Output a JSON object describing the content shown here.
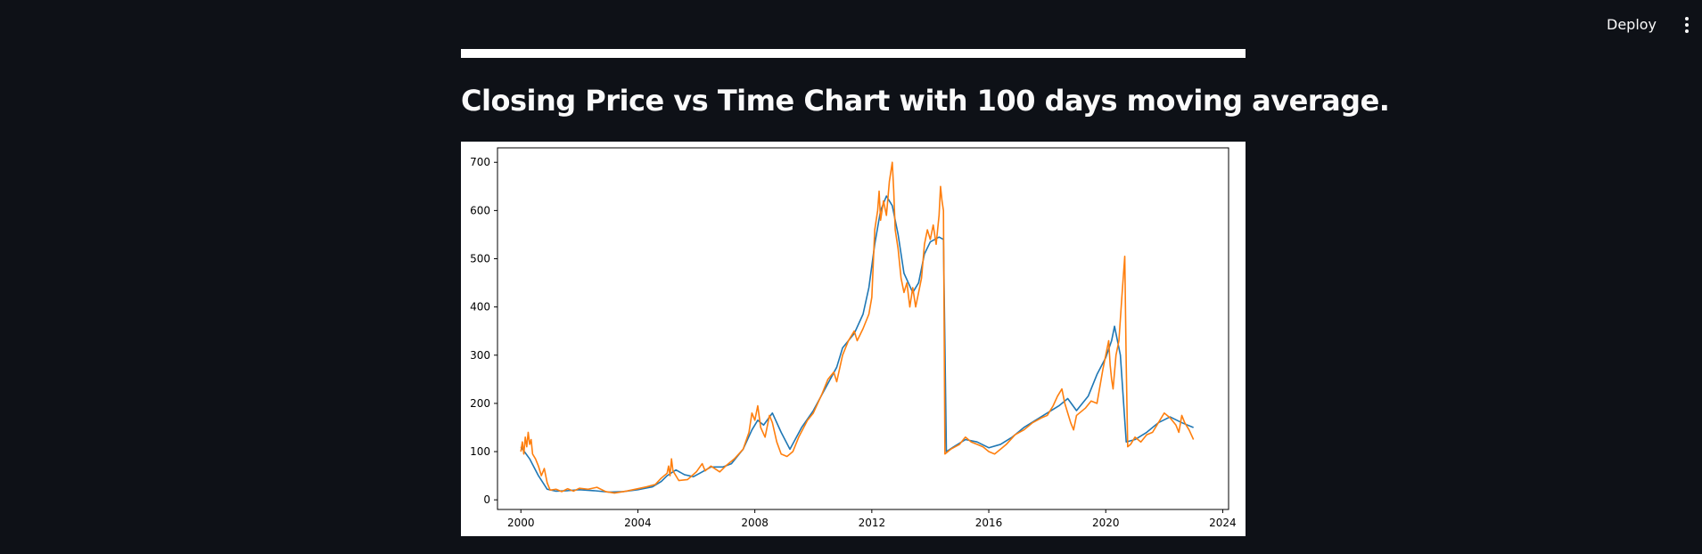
{
  "header": {
    "deploy_label": "Deploy",
    "menu_icon": "vertical-ellipsis-icon"
  },
  "page": {
    "title": "Closing Price vs Time Chart with 100 days moving average."
  },
  "colors": {
    "background": "#0e1117",
    "text": "#fafafa",
    "series_ma100": "#1f77b4",
    "series_close": "#ff7f0e"
  },
  "chart_data": {
    "type": "line",
    "title": "",
    "xlabel": "",
    "ylabel": "",
    "xlim": [
      1999.2,
      2024.2
    ],
    "ylim": [
      -20,
      730
    ],
    "x_ticks": [
      2000,
      2004,
      2008,
      2012,
      2016,
      2020,
      2024
    ],
    "x_tick_labels": [
      "2000",
      "2004",
      "2008",
      "2012",
      "2016",
      "2020",
      "2024"
    ],
    "y_ticks": [
      0,
      100,
      200,
      300,
      400,
      500,
      600,
      700
    ],
    "y_tick_labels": [
      "0",
      "100",
      "200",
      "300",
      "400",
      "500",
      "600",
      "700"
    ],
    "grid": false,
    "legend": "none",
    "series": [
      {
        "color": "#1f77b4",
        "points": [
          [
            2000.0,
            110
          ],
          [
            2000.3,
            85
          ],
          [
            2000.6,
            50
          ],
          [
            2000.9,
            22
          ],
          [
            2001.2,
            18
          ],
          [
            2001.6,
            19
          ],
          [
            2002.0,
            21
          ],
          [
            2002.5,
            19
          ],
          [
            2003.0,
            16
          ],
          [
            2003.5,
            17
          ],
          [
            2004.0,
            21
          ],
          [
            2004.5,
            27
          ],
          [
            2004.8,
            38
          ],
          [
            2005.0,
            50
          ],
          [
            2005.3,
            62
          ],
          [
            2005.6,
            52
          ],
          [
            2005.9,
            48
          ],
          [
            2006.2,
            58
          ],
          [
            2006.5,
            68
          ],
          [
            2006.9,
            68
          ],
          [
            2007.2,
            75
          ],
          [
            2007.6,
            105
          ],
          [
            2007.9,
            145
          ],
          [
            2008.1,
            165
          ],
          [
            2008.3,
            155
          ],
          [
            2008.6,
            180
          ],
          [
            2008.9,
            140
          ],
          [
            2009.2,
            105
          ],
          [
            2009.6,
            150
          ],
          [
            2010.0,
            185
          ],
          [
            2010.4,
            230
          ],
          [
            2010.8,
            275
          ],
          [
            2011.0,
            315
          ],
          [
            2011.4,
            345
          ],
          [
            2011.7,
            385
          ],
          [
            2011.9,
            440
          ],
          [
            2012.1,
            530
          ],
          [
            2012.3,
            600
          ],
          [
            2012.5,
            630
          ],
          [
            2012.7,
            610
          ],
          [
            2012.9,
            550
          ],
          [
            2013.1,
            470
          ],
          [
            2013.4,
            430
          ],
          [
            2013.6,
            450
          ],
          [
            2013.8,
            510
          ],
          [
            2014.0,
            535
          ],
          [
            2014.3,
            545
          ],
          [
            2014.45,
            540
          ],
          [
            2014.55,
            100
          ],
          [
            2014.8,
            110
          ],
          [
            2015.2,
            125
          ],
          [
            2015.6,
            120
          ],
          [
            2016.0,
            108
          ],
          [
            2016.4,
            115
          ],
          [
            2016.8,
            130
          ],
          [
            2017.2,
            150
          ],
          [
            2017.6,
            165
          ],
          [
            2018.0,
            180
          ],
          [
            2018.4,
            195
          ],
          [
            2018.7,
            210
          ],
          [
            2019.0,
            185
          ],
          [
            2019.4,
            215
          ],
          [
            2019.7,
            260
          ],
          [
            2020.0,
            295
          ],
          [
            2020.2,
            330
          ],
          [
            2020.3,
            360
          ],
          [
            2020.5,
            300
          ],
          [
            2020.7,
            120
          ],
          [
            2021.0,
            125
          ],
          [
            2021.4,
            140
          ],
          [
            2021.8,
            160
          ],
          [
            2022.2,
            172
          ],
          [
            2022.6,
            160
          ],
          [
            2023.0,
            150
          ]
        ]
      },
      {
        "color": "#ff7f0e",
        "points": [
          [
            2000.0,
            100
          ],
          [
            2000.05,
            120
          ],
          [
            2000.1,
            95
          ],
          [
            2000.15,
            130
          ],
          [
            2000.2,
            110
          ],
          [
            2000.25,
            140
          ],
          [
            2000.3,
            115
          ],
          [
            2000.35,
            125
          ],
          [
            2000.4,
            95
          ],
          [
            2000.5,
            85
          ],
          [
            2000.6,
            70
          ],
          [
            2000.7,
            50
          ],
          [
            2000.8,
            65
          ],
          [
            2000.9,
            35
          ],
          [
            2001.0,
            20
          ],
          [
            2001.2,
            22
          ],
          [
            2001.4,
            17
          ],
          [
            2001.6,
            23
          ],
          [
            2001.8,
            18
          ],
          [
            2002.0,
            24
          ],
          [
            2002.3,
            22
          ],
          [
            2002.6,
            26
          ],
          [
            2002.9,
            17
          ],
          [
            2003.2,
            14
          ],
          [
            2003.6,
            18
          ],
          [
            2004.0,
            23
          ],
          [
            2004.3,
            27
          ],
          [
            2004.6,
            32
          ],
          [
            2004.8,
            45
          ],
          [
            2005.0,
            55
          ],
          [
            2005.05,
            70
          ],
          [
            2005.1,
            50
          ],
          [
            2005.15,
            85
          ],
          [
            2005.2,
            60
          ],
          [
            2005.4,
            40
          ],
          [
            2005.7,
            42
          ],
          [
            2006.0,
            58
          ],
          [
            2006.2,
            75
          ],
          [
            2006.3,
            60
          ],
          [
            2006.5,
            70
          ],
          [
            2006.8,
            58
          ],
          [
            2007.0,
            70
          ],
          [
            2007.3,
            85
          ],
          [
            2007.6,
            105
          ],
          [
            2007.8,
            140
          ],
          [
            2007.9,
            180
          ],
          [
            2008.0,
            165
          ],
          [
            2008.1,
            195
          ],
          [
            2008.2,
            150
          ],
          [
            2008.35,
            130
          ],
          [
            2008.5,
            175
          ],
          [
            2008.6,
            160
          ],
          [
            2008.75,
            120
          ],
          [
            2008.9,
            95
          ],
          [
            2009.1,
            90
          ],
          [
            2009.3,
            100
          ],
          [
            2009.5,
            130
          ],
          [
            2009.8,
            165
          ],
          [
            2010.0,
            180
          ],
          [
            2010.3,
            220
          ],
          [
            2010.5,
            250
          ],
          [
            2010.7,
            265
          ],
          [
            2010.8,
            245
          ],
          [
            2011.0,
            300
          ],
          [
            2011.2,
            330
          ],
          [
            2011.4,
            350
          ],
          [
            2011.5,
            330
          ],
          [
            2011.7,
            355
          ],
          [
            2011.9,
            385
          ],
          [
            2012.0,
            420
          ],
          [
            2012.1,
            560
          ],
          [
            2012.2,
            600
          ],
          [
            2012.25,
            640
          ],
          [
            2012.3,
            580
          ],
          [
            2012.4,
            620
          ],
          [
            2012.5,
            590
          ],
          [
            2012.6,
            660
          ],
          [
            2012.7,
            700
          ],
          [
            2012.75,
            640
          ],
          [
            2012.8,
            560
          ],
          [
            2012.9,
            520
          ],
          [
            2013.0,
            460
          ],
          [
            2013.1,
            430
          ],
          [
            2013.2,
            450
          ],
          [
            2013.3,
            400
          ],
          [
            2013.4,
            440
          ],
          [
            2013.5,
            400
          ],
          [
            2013.6,
            430
          ],
          [
            2013.7,
            460
          ],
          [
            2013.8,
            530
          ],
          [
            2013.9,
            560
          ],
          [
            2014.0,
            540
          ],
          [
            2014.1,
            570
          ],
          [
            2014.2,
            530
          ],
          [
            2014.3,
            590
          ],
          [
            2014.35,
            650
          ],
          [
            2014.4,
            620
          ],
          [
            2014.45,
            600
          ],
          [
            2014.5,
            95
          ],
          [
            2014.7,
            105
          ],
          [
            2015.0,
            115
          ],
          [
            2015.2,
            130
          ],
          [
            2015.4,
            120
          ],
          [
            2015.6,
            115
          ],
          [
            2015.8,
            110
          ],
          [
            2016.0,
            100
          ],
          [
            2016.2,
            95
          ],
          [
            2016.4,
            105
          ],
          [
            2016.6,
            115
          ],
          [
            2016.9,
            135
          ],
          [
            2017.2,
            145
          ],
          [
            2017.5,
            160
          ],
          [
            2017.8,
            170
          ],
          [
            2018.0,
            175
          ],
          [
            2018.2,
            195
          ],
          [
            2018.35,
            215
          ],
          [
            2018.5,
            230
          ],
          [
            2018.6,
            200
          ],
          [
            2018.7,
            180
          ],
          [
            2018.8,
            160
          ],
          [
            2018.9,
            145
          ],
          [
            2019.0,
            175
          ],
          [
            2019.3,
            190
          ],
          [
            2019.5,
            205
          ],
          [
            2019.7,
            200
          ],
          [
            2019.9,
            270
          ],
          [
            2020.0,
            300
          ],
          [
            2020.1,
            330
          ],
          [
            2020.15,
            280
          ],
          [
            2020.2,
            250
          ],
          [
            2020.25,
            230
          ],
          [
            2020.35,
            300
          ],
          [
            2020.45,
            330
          ],
          [
            2020.55,
            420
          ],
          [
            2020.65,
            505
          ],
          [
            2020.7,
            280
          ],
          [
            2020.75,
            110
          ],
          [
            2020.85,
            115
          ],
          [
            2021.0,
            130
          ],
          [
            2021.2,
            120
          ],
          [
            2021.4,
            135
          ],
          [
            2021.6,
            140
          ],
          [
            2021.8,
            160
          ],
          [
            2022.0,
            180
          ],
          [
            2022.2,
            170
          ],
          [
            2022.4,
            155
          ],
          [
            2022.5,
            140
          ],
          [
            2022.6,
            175
          ],
          [
            2022.7,
            160
          ],
          [
            2022.85,
            145
          ],
          [
            2023.0,
            125
          ]
        ]
      }
    ]
  }
}
